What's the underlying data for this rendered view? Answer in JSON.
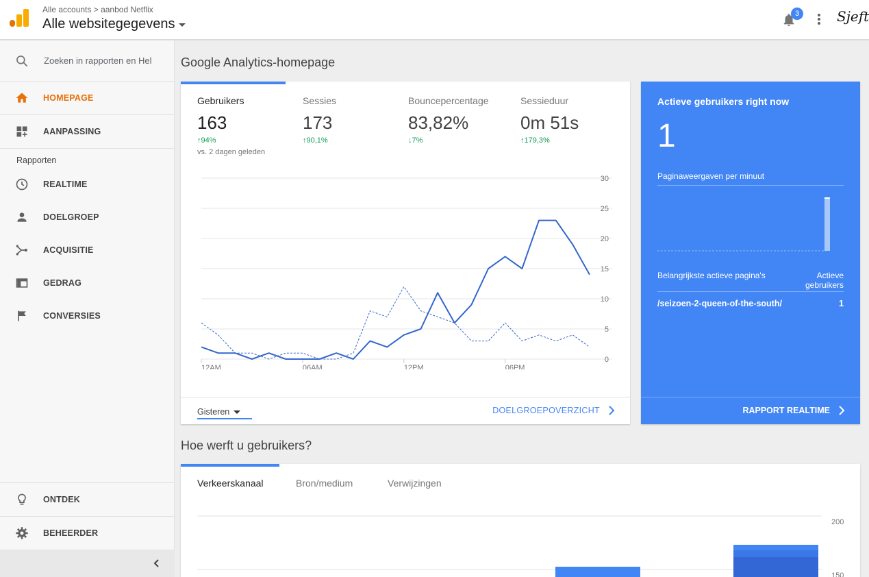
{
  "header": {
    "breadcrumb_root": "Alle accounts",
    "breadcrumb_sep": ">",
    "breadcrumb_account": "aanbod Netflix",
    "property_view": "Alle websitegegevens",
    "notification_count": "3",
    "signature": "Sjeft"
  },
  "sidebar": {
    "search_placeholder": "Zoeken in rapporten en Hel",
    "home": "HOMEPAGE",
    "customization": "AANPASSING",
    "reports_label": "Rapporten",
    "realtime": "REALTIME",
    "audience": "DOELGROEP",
    "acquisition": "ACQUISITIE",
    "behavior": "GEDRAG",
    "conversions": "CONVERSIES",
    "discover": "ONTDEK",
    "admin": "BEHEERDER"
  },
  "main": {
    "page_title": "Google Analytics-homepage",
    "metrics": [
      {
        "label": "Gebruikers",
        "value": "163",
        "change": "94%",
        "direction": "up"
      },
      {
        "label": "Sessies",
        "value": "173",
        "change": "90,1%",
        "direction": "up"
      },
      {
        "label": "Bouncepercentage",
        "value": "83,82%",
        "change": "7%",
        "direction": "down"
      },
      {
        "label": "Sessieduur",
        "value": "0m 51s",
        "change": "179,3%",
        "direction": "up"
      }
    ],
    "comparison_note": "vs. 2 dagen geleden",
    "date_range": "Gisteren",
    "overview_link": "DOELGROEPOVERZICHT"
  },
  "chart_data": {
    "type": "line",
    "x_ticks": [
      "12AM",
      "06AM",
      "12PM",
      "06PM"
    ],
    "y_ticks": [
      0,
      5,
      10,
      15,
      20,
      25,
      30
    ],
    "ylim": [
      0,
      30
    ],
    "x": [
      "0",
      "1",
      "2",
      "3",
      "4",
      "5",
      "6",
      "7",
      "8",
      "9",
      "10",
      "11",
      "12",
      "13",
      "14",
      "15",
      "16",
      "17",
      "18",
      "19",
      "20",
      "21",
      "22",
      "23"
    ],
    "series": [
      {
        "style": "solid",
        "color": "#3366cc",
        "values": [
          2,
          1,
          1,
          0,
          1,
          0,
          0,
          0,
          1,
          0,
          3,
          2,
          4,
          5,
          11,
          6,
          9,
          15,
          17,
          15,
          23,
          23,
          19,
          14
        ]
      },
      {
        "style": "dashed",
        "color": "#3366cc",
        "values": [
          6,
          4,
          1,
          1,
          0,
          1,
          1,
          0,
          0,
          1,
          8,
          7,
          12,
          8,
          7,
          6,
          3,
          3,
          6,
          3,
          4,
          3,
          4,
          2
        ]
      }
    ]
  },
  "realtime": {
    "title": "Actieve gebruikers right now",
    "count": "1",
    "subtitle": "Paginaweergaven per minuut",
    "table_header_left": "Belangrijkste actieve pagina's",
    "table_header_right_1": "Actieve",
    "table_header_right_2": "gebruikers",
    "row_page": "/seizoen-2-queen-of-the-south/",
    "row_value": "1",
    "link": "RAPPORT REALTIME"
  },
  "acquisition": {
    "title": "Hoe werft u gebruikers?",
    "tabs": [
      "Verkeerskanaal",
      "Bron/medium",
      "Verwijzingen"
    ],
    "y_ticks": [
      "200",
      "150"
    ]
  }
}
